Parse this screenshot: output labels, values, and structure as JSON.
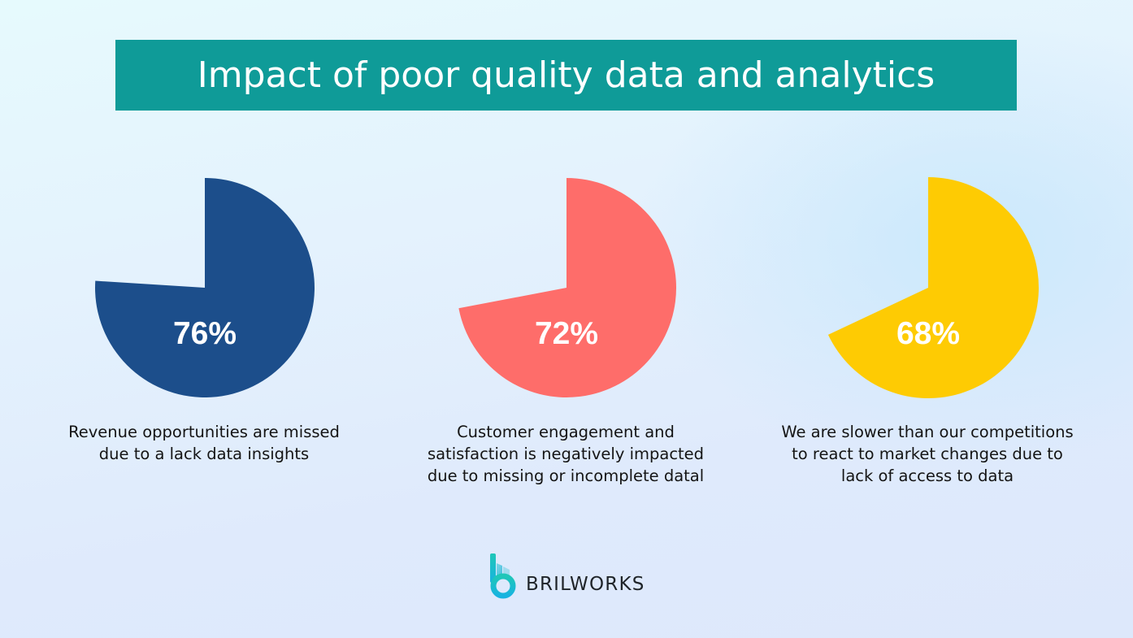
{
  "title": "Impact of poor quality data and analytics",
  "colors": {
    "title_bg": "#0f9b98",
    "title_text": "#ffffff",
    "pie_1": "#1c4e8b",
    "pie_2": "#fe6d6a",
    "pie_3": "#fecb03",
    "label_text": "#ffffff",
    "caption_text": "#141414"
  },
  "stats": [
    {
      "value_label": "76%",
      "caption_lines": [
        "Revenue opportunities are missed",
        "due to a lack data insights"
      ]
    },
    {
      "value_label": "72%",
      "caption_lines": [
        "Customer engagement and",
        "satisfaction is negatively impacted",
        "due to missing or incomplete datal"
      ]
    },
    {
      "value_label": "68%",
      "caption_lines": [
        "We are slower than our competitions",
        "to react to market changes due to",
        "lack of access to data"
      ]
    }
  ],
  "logo": {
    "icon": "brilworks-b-logo-icon",
    "text": "BRILWORKS"
  },
  "chart_data": {
    "type": "pie",
    "title": "Impact of poor quality data and analytics",
    "charts": [
      {
        "category": "Revenue opportunities are missed due to a lack data insights",
        "value": 76,
        "remainder": 24,
        "color": "#1c4e8b",
        "center": [
          252,
          354
        ],
        "radius": 135
      },
      {
        "category": "Customer engagement and satisfaction is negatively impacted due to missing or incomplete datal",
        "value": 72,
        "remainder": 28,
        "color": "#fe6d6a",
        "center": [
          697,
          354
        ],
        "radius": 135
      },
      {
        "category": "We are slower than our competitions to react to market changes due to lack of access to data",
        "value": 68,
        "remainder": 32,
        "color": "#fecb03",
        "center": [
          1142,
          354
        ],
        "radius": 136
      }
    ],
    "legend": "none",
    "grid": false
  }
}
